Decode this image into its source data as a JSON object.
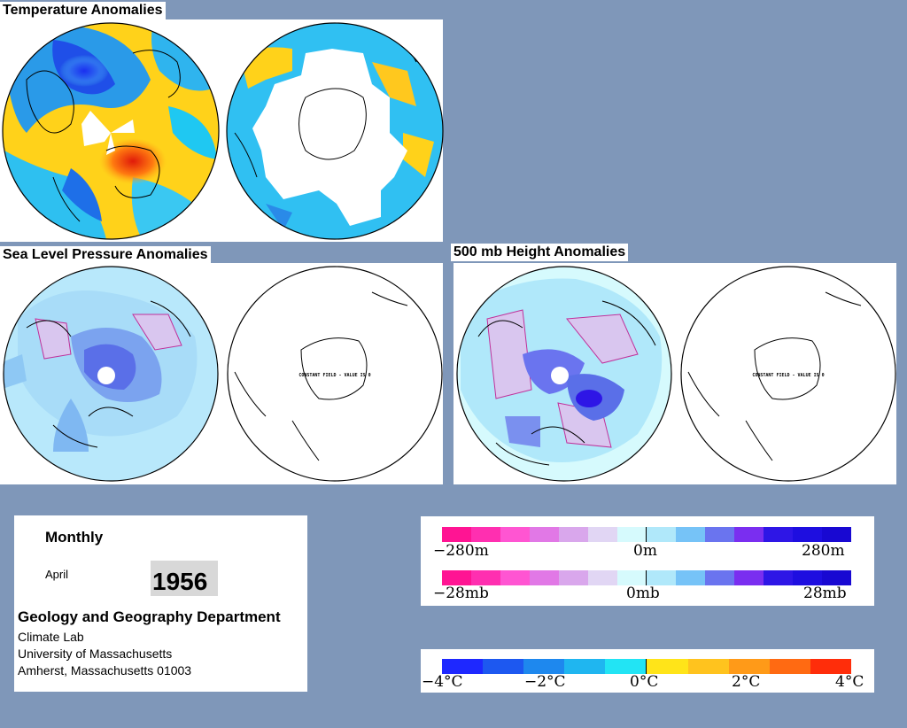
{
  "titles": {
    "temperature": "Temperature Anomalies",
    "slp": "Sea Level Pressure Anomalies",
    "height": "500 mb Height Anomalies"
  },
  "constant_field_text": "CONSTANT FIELD - VALUE IS 0",
  "info": {
    "period": "Monthly",
    "month": "April",
    "year": "1956",
    "department": "Geology and Geography Department",
    "lab": "Climate Lab",
    "university": "University of Massachusetts",
    "address": "Amherst, Massachusetts 01003"
  },
  "legends": {
    "height": {
      "labels": [
        "−280m",
        "0m",
        "280m"
      ]
    },
    "pressure": {
      "labels": [
        "−28mb",
        "0mb",
        "28mb"
      ]
    },
    "temperature": {
      "labels": [
        "−4°C",
        "−2°C",
        "0°C",
        "2°C",
        "4°C"
      ]
    }
  },
  "colors": {
    "background": "#7f97b9",
    "anomaly_ramp": [
      "#ff1493",
      "#ff2fb0",
      "#ff55d2",
      "#e178e6",
      "#d9a7ec",
      "#e1d6f4",
      "#d6fafd",
      "#b0e8fa",
      "#76c3f7",
      "#6a74ef",
      "#7a2ef0",
      "#2e16e6",
      "#1e0ee0",
      "#1808d2"
    ],
    "temperature_ramp": [
      "#1e28ff",
      "#1d58f0",
      "#1e88ee",
      "#1fb6f0",
      "#22e4f4",
      "#ffe419",
      "#ffc31e",
      "#ff9a18",
      "#ff6a12",
      "#ff2d0a"
    ]
  }
}
